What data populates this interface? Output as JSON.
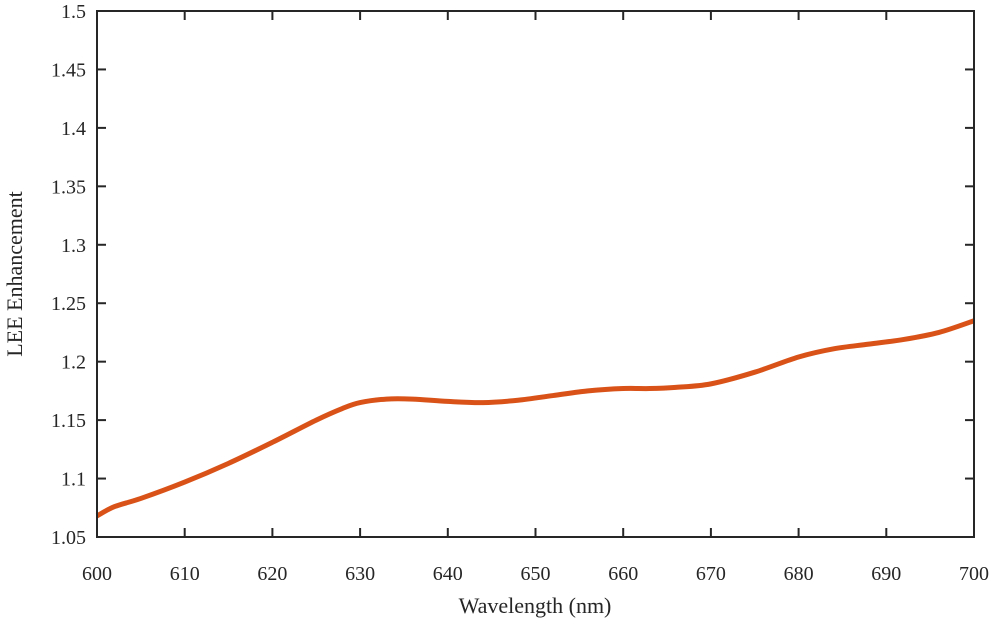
{
  "chart_data": {
    "type": "line",
    "xlabel": "Wavelength (nm)",
    "ylabel": "LEE Enhancement",
    "xlim": [
      600,
      700
    ],
    "ylim": [
      1.05,
      1.5
    ],
    "x_ticks": [
      600,
      610,
      620,
      630,
      640,
      650,
      660,
      670,
      680,
      690,
      700
    ],
    "y_ticks": [
      1.05,
      1.1,
      1.15,
      1.2,
      1.25,
      1.3,
      1.35,
      1.4,
      1.45,
      1.5
    ],
    "x_tick_labels": [
      "600",
      "610",
      "620",
      "630",
      "640",
      "650",
      "660",
      "670",
      "680",
      "690",
      "700"
    ],
    "y_tick_labels": [
      "1.05",
      "1.1",
      "1.15",
      "1.2",
      "1.25",
      "1.3",
      "1.35",
      "1.4",
      "1.45",
      "1.5"
    ],
    "grid": false,
    "box": true,
    "series": [
      {
        "color": "#d95319",
        "x": [
          600,
          602,
          605,
          610,
          615,
          620,
          625,
          628,
          630,
          633,
          636,
          640,
          644,
          648,
          652,
          656,
          660,
          663,
          666,
          670,
          675,
          680,
          684,
          688,
          692,
          696,
          700
        ],
        "y": [
          1.068,
          1.076,
          1.083,
          1.097,
          1.113,
          1.131,
          1.15,
          1.16,
          1.165,
          1.168,
          1.168,
          1.166,
          1.165,
          1.167,
          1.171,
          1.175,
          1.177,
          1.177,
          1.178,
          1.181,
          1.191,
          1.204,
          1.211,
          1.215,
          1.219,
          1.225,
          1.235
        ]
      }
    ]
  }
}
